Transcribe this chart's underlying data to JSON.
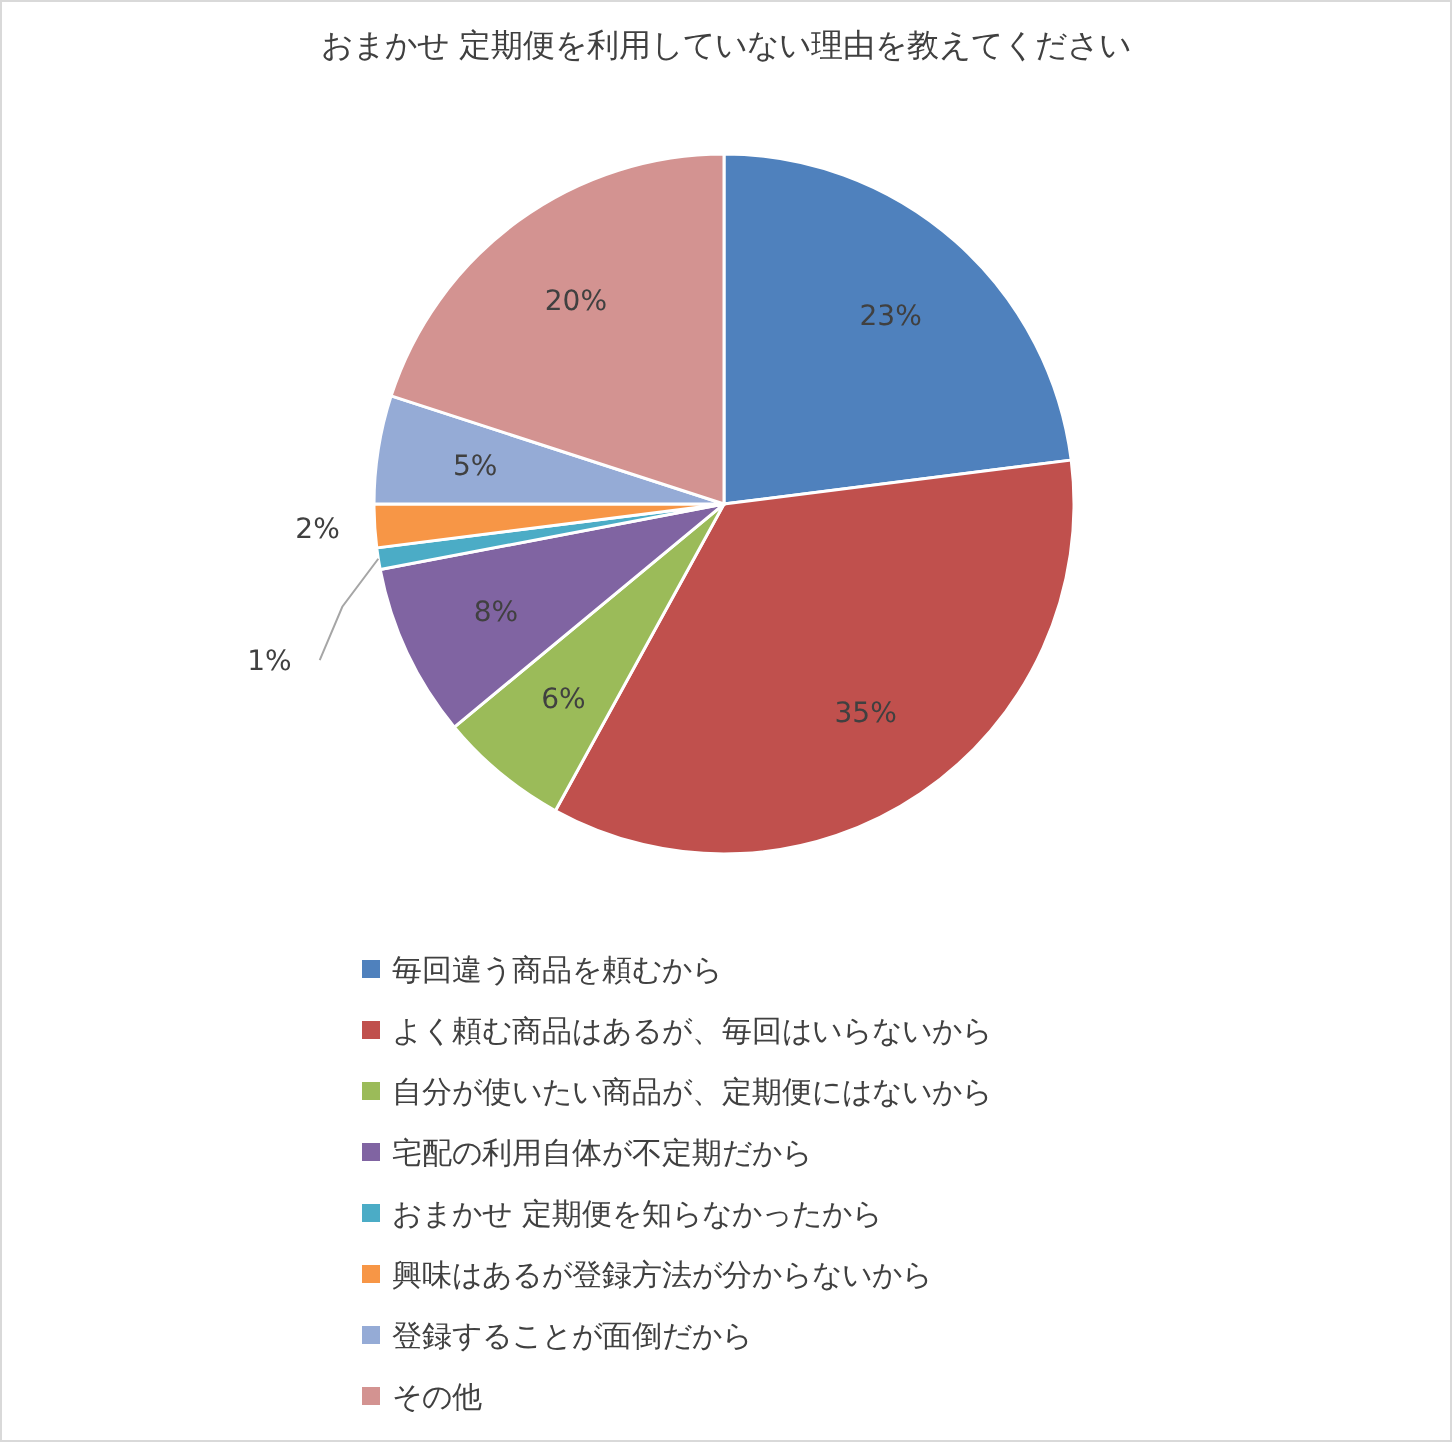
{
  "chart_data": {
    "type": "pie",
    "title": "おまかせ 定期便を利用していない理由を教えてください",
    "categories": [
      "毎回違う商品を頼むから",
      "よく頼む商品はあるが、毎回はいらないから",
      "自分が使いたい商品が、定期便にはないから",
      "宅配の利用自体が不定期だから",
      "おまかせ 定期便を知らなかったから",
      "興味はあるが登録方法が分からないから",
      "登録することが面倒だから",
      "その他"
    ],
    "values": [
      23,
      35,
      6,
      8,
      1,
      2,
      5,
      20
    ],
    "colors": [
      "#4f81bd",
      "#c0504d",
      "#9bbb59",
      "#8064a2",
      "#4bacc6",
      "#f79646",
      "#95abd6",
      "#d39391"
    ],
    "value_labels": [
      "23%",
      "35%",
      "6%",
      "8%",
      "1%",
      "2%",
      "5%",
      "20%"
    ],
    "legend": "bottom"
  }
}
